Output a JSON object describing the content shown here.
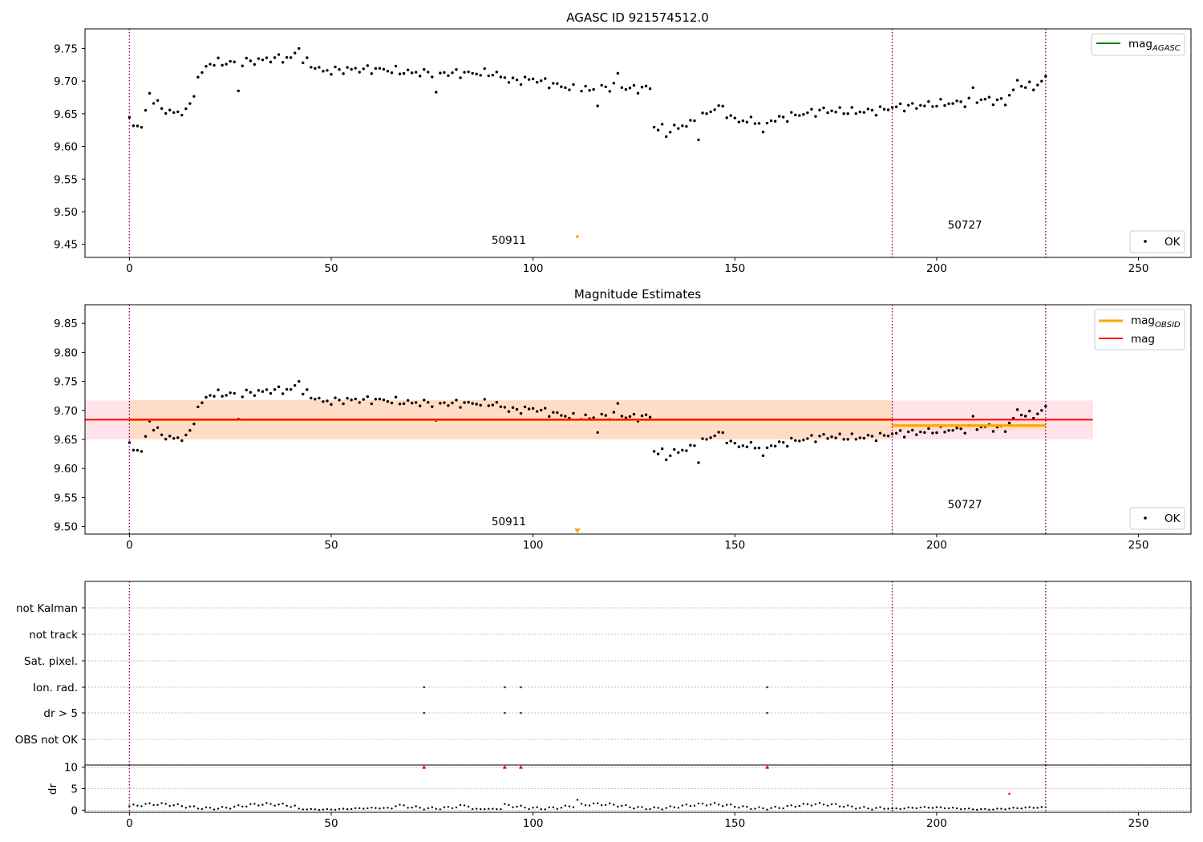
{
  "figure": {
    "panel1_title": "AGASC ID 921574512.0",
    "panel2_title": "Magnitude Estimates"
  },
  "colors": {
    "points": "#000000",
    "agasc_line": "#008000",
    "obsid_line": "#ffa500",
    "mag_line": "#ff0000",
    "obsid_band": "#ffdab9",
    "mag_band": "#ffc0cb",
    "separator": "#800080",
    "grid": "#b0b0b0",
    "flag_triangle": "#ff0000",
    "outlier": "#ffa500"
  },
  "chart_data": [
    {
      "type": "scatter",
      "title": "AGASC ID 921574512.0",
      "xlim": [
        -11,
        263
      ],
      "ylim": [
        9.43,
        9.78
      ],
      "xticks": [
        0,
        50,
        100,
        150,
        200,
        250
      ],
      "yticks": [
        9.45,
        9.5,
        9.55,
        9.6,
        9.65,
        9.7,
        9.75
      ],
      "ytick_labels": [
        "9.45",
        "9.50",
        "9.55",
        "9.60",
        "9.65",
        "9.70",
        "9.75"
      ],
      "legend": [
        {
          "label": "mag",
          "sub": "AGASC",
          "style": "line",
          "color": "#008000",
          "position": "top-right"
        },
        {
          "label": "OK",
          "style": "marker",
          "color": "#000000",
          "position": "bottom-right"
        }
      ],
      "observation_boundaries": [
        0,
        189,
        227
      ],
      "obsid_labels": [
        {
          "text": "50911",
          "x": 94,
          "y": 9.451
        },
        {
          "text": "50727",
          "x": 207,
          "y": 9.474
        }
      ],
      "outliers": [
        {
          "x": 111,
          "y": 9.462
        }
      ]
    },
    {
      "type": "scatter",
      "title": "Magnitude Estimates",
      "xlim": [
        -11,
        263
      ],
      "ylim": [
        9.487,
        9.882
      ],
      "xticks": [
        0,
        50,
        100,
        150,
        200,
        250
      ],
      "yticks": [
        9.5,
        9.55,
        9.6,
        9.65,
        9.7,
        9.75,
        9.8,
        9.85
      ],
      "ytick_labels": [
        "9.50",
        "9.55",
        "9.60",
        "9.65",
        "9.70",
        "9.75",
        "9.80",
        "9.85"
      ],
      "legend": [
        {
          "label": "mag",
          "sub": "OBSID",
          "style": "line",
          "color": "#ffa500",
          "position": "top-right"
        },
        {
          "label": "mag",
          "sub": "",
          "style": "line",
          "color": "#ff0000",
          "position": "top-right"
        },
        {
          "label": "OK",
          "style": "marker",
          "color": "#000000",
          "position": "bottom-right"
        }
      ],
      "observation_boundaries": [
        0,
        189,
        227
      ],
      "mag": {
        "value": 9.684,
        "band": [
          9.65,
          9.717
        ],
        "x_range": [
          -11,
          238.7
        ]
      },
      "obsid_mag": [
        {
          "x_range": [
            0,
            189
          ],
          "value": 9.684,
          "band": [
            9.651,
            9.718
          ]
        },
        {
          "x_range": [
            189,
            227
          ],
          "value": 9.674,
          "band": [
            9.666,
            9.681
          ]
        }
      ],
      "obsid_labels": [
        {
          "text": "50911",
          "x": 94,
          "y": 9.502
        },
        {
          "text": "50727",
          "x": 207,
          "y": 9.532
        }
      ],
      "outliers": [
        {
          "x": 111,
          "y": 9.491
        }
      ]
    },
    {
      "type": "scatter",
      "xlim": [
        -11,
        263
      ],
      "xticks": [
        0,
        50,
        100,
        150,
        200,
        250
      ],
      "flag_rows": [
        "not Kalman",
        "not track",
        "Sat. pixel.",
        "Ion. rad.",
        "dr > 5",
        "OBS not OK"
      ],
      "flag_points": {
        "Ion. rad.": [
          73,
          93,
          97,
          158
        ],
        "dr > 5": [
          73,
          93,
          97,
          158
        ]
      },
      "observation_boundaries": [
        0,
        189,
        227
      ]
    },
    {
      "type": "scatter",
      "ylabel": "dr",
      "xlim": [
        -11,
        263
      ],
      "ylim": [
        -0.5,
        10.5
      ],
      "yticks": [
        0,
        5,
        10
      ],
      "ytick_labels": [
        "0",
        "5",
        "10"
      ],
      "clipped_at_10": [
        73,
        93,
        97,
        158
      ],
      "highlight_points": [
        {
          "x": 218,
          "y": 3.8
        }
      ]
    }
  ]
}
